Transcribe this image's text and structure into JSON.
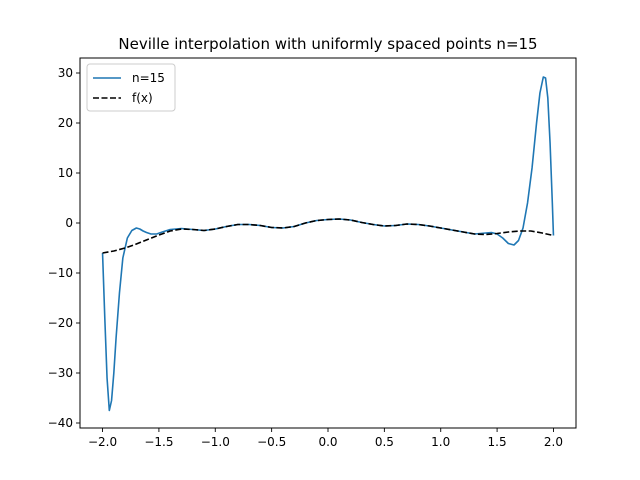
{
  "chart_data": {
    "type": "line",
    "title": "Neville interpolation with uniformly spaced points n=15",
    "xlabel": "",
    "ylabel": "",
    "xlim": [
      -2.2,
      2.2
    ],
    "ylim": [
      -41.0,
      33.0
    ],
    "xticks": [
      -2.0,
      -1.5,
      -1.0,
      -0.5,
      0.0,
      0.5,
      1.0,
      1.5,
      2.0
    ],
    "xtick_labels": [
      "−2.0",
      "−1.5",
      "−1.0",
      "−0.5",
      "0.0",
      "0.5",
      "1.0",
      "1.5",
      "2.0"
    ],
    "yticks": [
      -40,
      -30,
      -20,
      -10,
      0,
      10,
      20,
      30
    ],
    "ytick_labels": [
      "−40",
      "−30",
      "−20",
      "−10",
      "0",
      "10",
      "20",
      "30"
    ],
    "grid": false,
    "legend_position": "top-left",
    "series": [
      {
        "name": "n=15",
        "color": "#1f77b4",
        "dash": "solid",
        "x": [
          -2.0,
          -1.98,
          -1.96,
          -1.94,
          -1.92,
          -1.9,
          -1.88,
          -1.85,
          -1.82,
          -1.78,
          -1.74,
          -1.7,
          -1.67,
          -1.64,
          -1.61,
          -1.57,
          -1.52,
          -1.47,
          -1.4,
          -1.3,
          -1.2,
          -1.1,
          -1.0,
          -0.9,
          -0.8,
          -0.7,
          -0.6,
          -0.5,
          -0.4,
          -0.3,
          -0.2,
          -0.1,
          0.0,
          0.1,
          0.2,
          0.3,
          0.4,
          0.5,
          0.6,
          0.7,
          0.8,
          0.9,
          1.0,
          1.1,
          1.2,
          1.3,
          1.4,
          1.45,
          1.5,
          1.55,
          1.6,
          1.65,
          1.69,
          1.73,
          1.77,
          1.81,
          1.85,
          1.88,
          1.91,
          1.93,
          1.95,
          1.97,
          1.99,
          2.0
        ],
        "y": [
          -6.0,
          -19.0,
          -31.0,
          -37.5,
          -35.5,
          -30.0,
          -23.0,
          -14.0,
          -7.0,
          -3.0,
          -1.5,
          -1.0,
          -1.2,
          -1.6,
          -1.9,
          -2.2,
          -2.2,
          -1.8,
          -1.3,
          -1.1,
          -1.3,
          -1.5,
          -1.2,
          -0.7,
          -0.3,
          -0.3,
          -0.5,
          -0.9,
          -1.0,
          -0.7,
          0.0,
          0.5,
          0.7,
          0.8,
          0.6,
          0.1,
          -0.3,
          -0.6,
          -0.5,
          -0.2,
          -0.3,
          -0.6,
          -1.0,
          -1.4,
          -1.8,
          -2.2,
          -2.0,
          -1.9,
          -2.2,
          -3.0,
          -4.1,
          -4.4,
          -3.5,
          -1.0,
          4.0,
          11.0,
          20.0,
          26.0,
          29.2,
          29.0,
          25.0,
          16.0,
          4.0,
          -2.5
        ]
      },
      {
        "name": "f(x)",
        "color": "#000000",
        "dash": "dashed",
        "x": [
          -2.0,
          -1.9,
          -1.8,
          -1.7,
          -1.6,
          -1.5,
          -1.4,
          -1.3,
          -1.2,
          -1.1,
          -1.0,
          -0.9,
          -0.8,
          -0.7,
          -0.6,
          -0.5,
          -0.4,
          -0.3,
          -0.2,
          -0.1,
          0.0,
          0.1,
          0.2,
          0.3,
          0.4,
          0.5,
          0.6,
          0.7,
          0.8,
          0.9,
          1.0,
          1.1,
          1.2,
          1.3,
          1.4,
          1.5,
          1.6,
          1.7,
          1.8,
          1.9,
          2.0
        ],
        "y": [
          -6.0,
          -5.6,
          -5.0,
          -4.2,
          -3.3,
          -2.4,
          -1.6,
          -1.2,
          -1.3,
          -1.5,
          -1.2,
          -0.7,
          -0.3,
          -0.3,
          -0.5,
          -0.9,
          -1.0,
          -0.7,
          0.0,
          0.5,
          0.7,
          0.8,
          0.6,
          0.1,
          -0.3,
          -0.6,
          -0.5,
          -0.2,
          -0.3,
          -0.6,
          -1.0,
          -1.4,
          -1.8,
          -2.2,
          -2.3,
          -2.1,
          -1.8,
          -1.6,
          -1.6,
          -2.0,
          -2.5
        ]
      }
    ]
  }
}
